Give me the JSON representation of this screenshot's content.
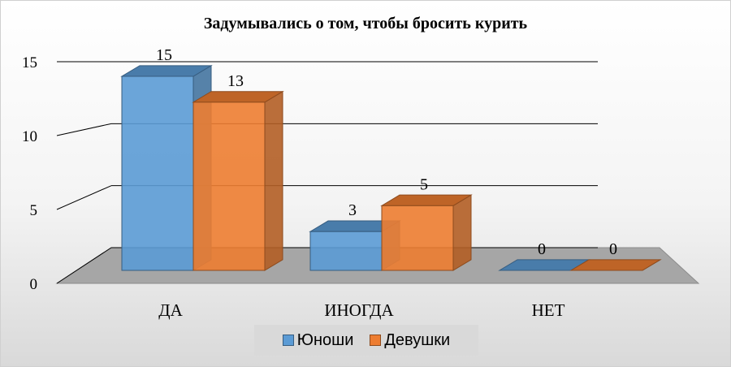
{
  "chart_data": {
    "type": "bar",
    "title": "Задумывались о том, чтобы бросить курить",
    "categories": [
      "ДА",
      "ИНОГДА",
      "НЕТ"
    ],
    "series": [
      {
        "name": "Юноши",
        "values": [
          15,
          3,
          0
        ],
        "color": "#5b9bd5"
      },
      {
        "name": "Девушки",
        "values": [
          13,
          5,
          0
        ],
        "color": "#ed7d31"
      }
    ],
    "ylim": [
      0,
      15
    ],
    "yticks": [
      "0",
      "5",
      "10",
      "15"
    ],
    "data_labels": [
      [
        "15",
        "3",
        "0"
      ],
      [
        "13",
        "5",
        "0"
      ]
    ],
    "xlabel": "",
    "ylabel": "",
    "grid": true,
    "legend_position": "bottom",
    "style": "3d-bar"
  }
}
